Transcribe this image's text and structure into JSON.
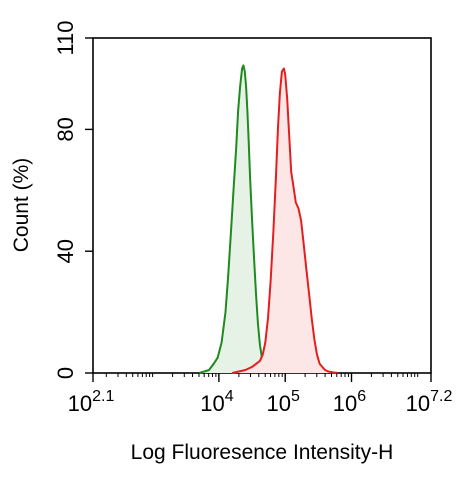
{
  "chart_data": {
    "type": "area",
    "title": "",
    "xlabel": "Log Fluoresence Intensity-H",
    "ylabel": "Count  (%)",
    "x_scale": "log",
    "xlim_log10": [
      2.1,
      7.2
    ],
    "ylim": [
      0,
      110
    ],
    "grid": false,
    "legend": "none",
    "x_ticks": [
      {
        "base": "10",
        "exp": "2.1",
        "log10": 2.1
      },
      {
        "base": "10",
        "exp": "4",
        "log10": 4
      },
      {
        "base": "10",
        "exp": "5",
        "log10": 5
      },
      {
        "base": "10",
        "exp": "6",
        "log10": 6
      },
      {
        "base": "10",
        "exp": "7.2",
        "log10": 7.2
      }
    ],
    "y_ticks": [
      {
        "label": "0",
        "value": 0
      },
      {
        "label": "40",
        "value": 40
      },
      {
        "label": "80",
        "value": 80
      },
      {
        "label": "110",
        "value": 110
      }
    ],
    "series": [
      {
        "color": "#1f8a1f",
        "fill": "#e6f2e6",
        "points_log10_x": [
          3.7,
          3.78,
          3.85,
          3.92,
          3.98,
          4.04,
          4.1,
          4.14,
          4.18,
          4.22,
          4.26,
          4.29,
          4.32,
          4.35,
          4.37,
          4.39,
          4.41,
          4.43,
          4.45,
          4.47,
          4.5,
          4.53,
          4.56,
          4.59,
          4.62,
          4.65,
          4.68,
          4.71,
          4.74,
          4.78,
          4.82
        ],
        "points_y": [
          0,
          0.5,
          1,
          3,
          5,
          10,
          20,
          32,
          46,
          60,
          74,
          86,
          94,
          100,
          101,
          99,
          94,
          86,
          76,
          64,
          50,
          38,
          26,
          16,
          9,
          5,
          3,
          1.5,
          1,
          0.5,
          0
        ]
      },
      {
        "color": "#e41e1e",
        "fill": "#fde6e6",
        "points_log10_x": [
          4.2,
          4.3,
          4.4,
          4.5,
          4.56,
          4.62,
          4.66,
          4.7,
          4.74,
          4.78,
          4.82,
          4.86,
          4.89,
          4.92,
          4.95,
          4.98,
          5.0,
          5.03,
          5.06,
          5.09,
          5.12,
          5.16,
          5.2,
          5.24,
          5.28,
          5.32,
          5.36,
          5.4,
          5.44,
          5.48,
          5.52,
          5.56,
          5.6,
          5.65,
          5.72,
          5.8
        ],
        "points_y": [
          0,
          0.5,
          1,
          2,
          3,
          4,
          6,
          10,
          18,
          30,
          46,
          64,
          80,
          92,
          99,
          100,
          98,
          90,
          78,
          66,
          62,
          56,
          54,
          50,
          42,
          34,
          26,
          18,
          11,
          6,
          3,
          2,
          1,
          0.5,
          0.2,
          0
        ]
      }
    ]
  }
}
